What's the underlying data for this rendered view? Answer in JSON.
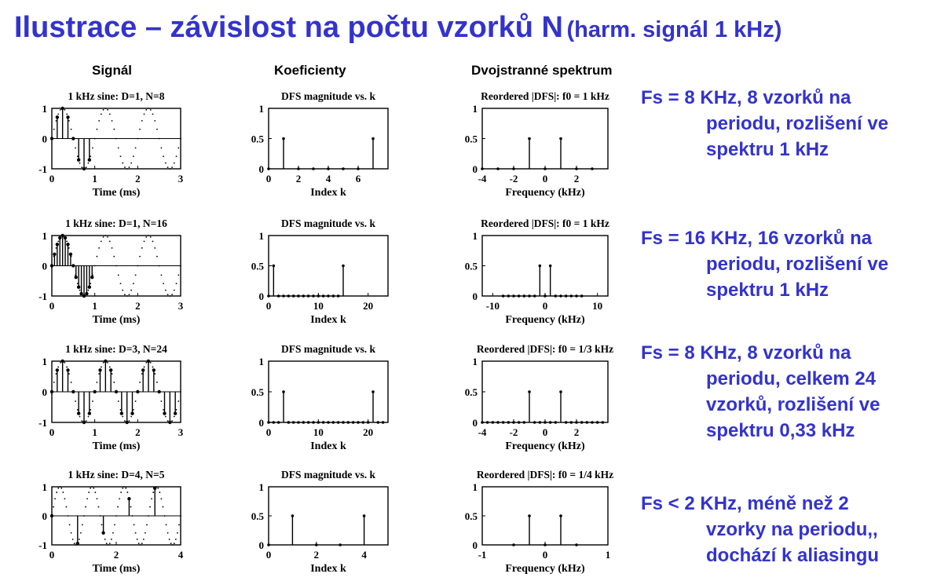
{
  "title": "Ilustrace – závislost na počtu vzorků N",
  "subtitle": "(harm. signál 1 kHz)",
  "accent_color": "#3333cc",
  "columns": [
    "Signál",
    "Koeficienty",
    "Dvojstranné spektrum"
  ],
  "rows": [
    {
      "desc": [
        "Fs = 8 KHz, 8 vzorků na",
        "periodu, rozlišení ve",
        "spektru 1 kHz"
      ]
    },
    {
      "desc": [
        "Fs = 16 KHz, 16 vzorků na",
        "periodu, rozlišení ve",
        "spektru 1 kHz"
      ]
    },
    {
      "desc": [
        "Fs = 8 KHz, 8 vzorků na",
        "periodu, celkem 24",
        "vzorků, rozlišení ve",
        "spektru 0,33 kHz"
      ]
    },
    {
      "desc": [
        "Fs < 2 KHz, méně než 2",
        "vzorky na periodu,,",
        "dochází k aliasingu"
      ]
    }
  ],
  "chart_data": [
    {
      "type": "scatter",
      "title": "1 kHz sine: D=1, N=8",
      "xlabel": "Time (ms)",
      "ylabel": "",
      "xlim": [
        0,
        3
      ],
      "ylim": [
        -1,
        1
      ],
      "xticks": [
        "0",
        "1",
        "2",
        "3"
      ],
      "yticks": [
        "-1",
        "0",
        "1"
      ],
      "sine_freq_khz": 1,
      "sample_period_ms": 0.125,
      "num_samples": 8
    },
    {
      "type": "bar",
      "title": "DFS magnitude vs. k",
      "xlabel": "Index k",
      "xlim": [
        0,
        8
      ],
      "ylim": [
        0,
        1
      ],
      "xticks": [
        "0",
        "2",
        "4",
        "6"
      ],
      "yticks": [
        "0",
        "0.5",
        "1"
      ],
      "x": [
        0,
        1,
        2,
        3,
        4,
        5,
        6,
        7
      ],
      "values": [
        0,
        0.5,
        0,
        0,
        0,
        0,
        0,
        0.5
      ]
    },
    {
      "type": "bar",
      "title": "Reordered |DFS|:  f0 = 1 kHz",
      "xlabel": "Frequency (kHz)",
      "xlim": [
        -4,
        4
      ],
      "ylim": [
        0,
        1
      ],
      "xticks": [
        "-4",
        "-2",
        "0",
        "2"
      ],
      "yticks": [
        "0",
        "0.5",
        "1"
      ],
      "x": [
        -4,
        -3,
        -2,
        -1,
        0,
        1,
        2,
        3
      ],
      "values": [
        0,
        0,
        0,
        0.5,
        0,
        0.5,
        0,
        0
      ]
    },
    {
      "type": "scatter",
      "title": "1 kHz sine: D=1, N=16",
      "xlabel": "Time (ms)",
      "ylabel": "",
      "xlim": [
        0,
        3
      ],
      "ylim": [
        -1,
        1
      ],
      "xticks": [
        "0",
        "1",
        "2",
        "3"
      ],
      "yticks": [
        "-1",
        "0",
        "1"
      ],
      "sine_freq_khz": 1,
      "sample_period_ms": 0.0625,
      "num_samples": 16
    },
    {
      "type": "bar",
      "title": "DFS magnitude vs. k",
      "xlabel": "Index k",
      "xlim": [
        0,
        24
      ],
      "ylim": [
        0,
        1
      ],
      "xticks": [
        "0",
        "10",
        "20"
      ],
      "yticks": [
        "0",
        "0.5",
        "1"
      ],
      "x": [
        0,
        1,
        2,
        3,
        4,
        5,
        6,
        7,
        8,
        9,
        10,
        11,
        12,
        13,
        14,
        15
      ],
      "values": [
        0,
        0.5,
        0,
        0,
        0,
        0,
        0,
        0,
        0,
        0,
        0,
        0,
        0,
        0,
        0,
        0.5
      ],
      "note_values_at_k": [
        1,
        15
      ]
    },
    {
      "type": "bar",
      "title": "Reordered |DFS|:  f0 = 1 kHz",
      "xlabel": "Frequency (kHz)",
      "xlim": [
        -12,
        12
      ],
      "ylim": [
        0,
        1
      ],
      "xticks": [
        "-10",
        "0",
        "10"
      ],
      "yticks": [
        "0",
        "0.5",
        "1"
      ],
      "x": [
        -8,
        -7,
        -6,
        -5,
        -4,
        -3,
        -2,
        -1,
        0,
        1,
        2,
        3,
        4,
        5,
        6,
        7
      ],
      "values": [
        0,
        0,
        0,
        0,
        0,
        0,
        0,
        0.5,
        0,
        0.5,
        0,
        0,
        0,
        0,
        0,
        0
      ]
    },
    {
      "type": "scatter",
      "title": "1 kHz sine: D=3, N=24",
      "xlabel": "Time (ms)",
      "ylabel": "",
      "xlim": [
        0,
        3
      ],
      "ylim": [
        -1,
        1
      ],
      "xticks": [
        "0",
        "1",
        "2",
        "3"
      ],
      "yticks": [
        "-1",
        "0",
        "1"
      ],
      "sine_freq_khz": 1,
      "sample_period_ms": 0.125,
      "num_samples": 24
    },
    {
      "type": "bar",
      "title": "DFS magnitude vs. k",
      "xlabel": "Index k",
      "xlim": [
        0,
        24
      ],
      "ylim": [
        0,
        1
      ],
      "xticks": [
        "0",
        "10",
        "20"
      ],
      "yticks": [
        "0",
        "0.5",
        "1"
      ],
      "x": [
        0,
        1,
        2,
        3,
        4,
        5,
        6,
        7,
        8,
        9,
        10,
        11,
        12,
        13,
        14,
        15,
        16,
        17,
        18,
        19,
        20,
        21,
        22,
        23
      ],
      "values": [
        0,
        0,
        0,
        0.5,
        0,
        0,
        0,
        0,
        0,
        0,
        0,
        0,
        0,
        0,
        0,
        0,
        0,
        0,
        0,
        0,
        0,
        0.5,
        0,
        0
      ]
    },
    {
      "type": "bar",
      "title": "Reordered |DFS|:  f0 = 1/3 kHz",
      "xlabel": "Frequency (kHz)",
      "xlim": [
        -4,
        4
      ],
      "ylim": [
        0,
        1
      ],
      "xticks": [
        "-4",
        "-2",
        "0",
        "2"
      ],
      "yticks": [
        "0",
        "0.5",
        "1"
      ],
      "x": [
        -4,
        -3.667,
        -3.333,
        -3,
        -2.667,
        -2.333,
        -2,
        -1.667,
        -1.333,
        -1,
        -0.667,
        -0.333,
        0,
        0.333,
        0.667,
        1,
        1.333,
        1.667,
        2,
        2.333,
        2.667,
        3,
        3.333,
        3.667
      ],
      "values": [
        0,
        0,
        0,
        0,
        0,
        0,
        0,
        0,
        0,
        0.5,
        0,
        0,
        0,
        0,
        0,
        0.5,
        0,
        0,
        0,
        0,
        0,
        0,
        0,
        0
      ]
    },
    {
      "type": "scatter",
      "title": "1 kHz sine: D=4, N=5",
      "xlabel": "Time (ms)",
      "ylabel": "",
      "xlim": [
        0,
        4
      ],
      "ylim": [
        -1,
        1
      ],
      "xticks": [
        "0",
        "2",
        "4"
      ],
      "yticks": [
        "-1",
        "0",
        "1"
      ],
      "sine_freq_khz": 1,
      "sample_period_ms": 0.8,
      "num_samples": 5
    },
    {
      "type": "bar",
      "title": "DFS magnitude vs. k",
      "xlabel": "Index k",
      "xlim": [
        0,
        5
      ],
      "ylim": [
        0,
        1
      ],
      "xticks": [
        "0",
        "2",
        "4"
      ],
      "yticks": [
        "0",
        "0.5",
        "1"
      ],
      "x": [
        0,
        1,
        2,
        3,
        4
      ],
      "values": [
        0,
        0.5,
        0,
        0,
        0.5
      ]
    },
    {
      "type": "bar",
      "title": "Reordered |DFS|:  f0 = 1/4 kHz",
      "xlabel": "Frequency (kHz)",
      "xlim": [
        -1,
        1
      ],
      "ylim": [
        0,
        1
      ],
      "xticks": [
        "-1",
        "0",
        "1"
      ],
      "yticks": [
        "0",
        "0.5",
        "1"
      ],
      "x": [
        -0.5,
        -0.25,
        0,
        0.25,
        0.5
      ],
      "values": [
        0,
        0.5,
        0,
        0.5,
        0
      ]
    }
  ]
}
